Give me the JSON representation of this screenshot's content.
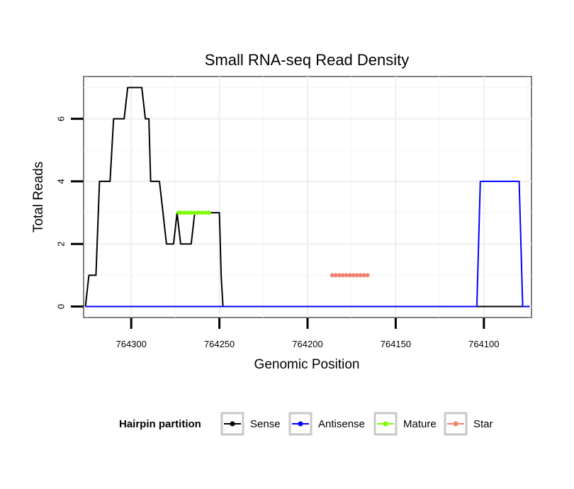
{
  "chart_data": {
    "type": "line",
    "title": "Small RNA-seq Read Density",
    "xlabel": "Genomic Position",
    "ylabel": "Total Reads",
    "x_reversed": true,
    "xlim": [
      764327,
      764073
    ],
    "ylim": [
      -0.35,
      7.35
    ],
    "xticks": [
      764300,
      764250,
      764200,
      764150,
      764100
    ],
    "xtick_labels": [
      "764300",
      "764250",
      "764200",
      "764150",
      "764100"
    ],
    "yticks": [
      0,
      2,
      4,
      6
    ],
    "ytick_labels": [
      "0",
      "2",
      "4",
      "6"
    ],
    "grid": true,
    "legend": {
      "title": "Hairpin partition",
      "position": "bottom",
      "entries": [
        {
          "label": "Sense",
          "color": "#000000"
        },
        {
          "label": "Antisense",
          "color": "#0000ff"
        },
        {
          "label": "Mature",
          "color": "#7cfc00"
        },
        {
          "label": "Star",
          "color": "#f08070"
        }
      ]
    },
    "series": [
      {
        "name": "Sense",
        "color": "#000000",
        "x": [
          764326,
          764324,
          764322,
          764320,
          764318,
          764316,
          764314,
          764312,
          764310,
          764308,
          764306,
          764304,
          764302,
          764300,
          764299,
          764298,
          764296,
          764294,
          764292,
          764290,
          764289,
          764288,
          764286,
          764284,
          764282,
          764280,
          764278,
          764276,
          764274,
          764272,
          764270,
          764268,
          764266,
          764264,
          764262,
          764260,
          764258,
          764256,
          764254,
          764252,
          764250,
          764249,
          764248,
          764246,
          764244,
          764242,
          764240,
          764238,
          764236,
          764234,
          764232,
          764230,
          764228,
          764226,
          764224,
          764222,
          764220,
          764218,
          764216,
          764214,
          764212,
          764210,
          764208,
          764206,
          764204,
          764202,
          764200,
          764198,
          764196,
          764194,
          764192,
          764190,
          764188,
          764186,
          764184,
          764182,
          764180,
          764178,
          764176,
          764174,
          764172,
          764170,
          764168,
          764166,
          764164,
          764162,
          764160,
          764158,
          764156,
          764154,
          764152,
          764150,
          764148,
          764146,
          764144,
          764142,
          764140,
          764138,
          764136,
          764134,
          764132,
          764130,
          764128,
          764126,
          764124,
          764122,
          764120,
          764118,
          764116,
          764114,
          764112,
          764110,
          764108,
          764106,
          764104,
          764102,
          764100,
          764098,
          764096,
          764094,
          764092,
          764090,
          764088,
          764086,
          764084,
          764082,
          764080,
          764078,
          764076,
          764074
        ],
        "y": [
          0,
          1,
          1,
          1,
          4,
          4,
          4,
          4,
          6,
          6,
          6,
          6,
          7,
          7,
          7,
          7,
          7,
          7,
          6,
          6,
          4,
          4,
          4,
          4,
          3,
          2,
          2,
          2,
          3,
          2,
          2,
          2,
          2,
          3,
          3,
          3,
          3,
          3,
          3,
          3,
          3,
          1,
          0,
          0,
          0,
          0,
          0,
          0,
          0,
          0,
          0,
          0,
          0,
          0,
          0,
          0,
          0,
          0,
          0,
          0,
          0,
          0,
          0,
          0,
          0,
          0,
          0,
          0,
          0,
          0,
          0,
          0,
          0,
          0,
          0,
          0,
          0,
          0,
          0,
          0,
          0,
          0,
          0,
          0,
          0,
          0,
          0,
          0,
          0,
          0,
          0,
          0,
          0,
          0,
          0,
          0,
          0,
          0,
          0,
          0,
          0,
          0,
          0,
          0,
          0,
          0,
          0,
          0,
          0,
          0,
          0,
          0,
          0,
          0,
          0,
          0,
          0,
          0,
          0,
          0,
          0,
          0,
          0,
          0,
          0,
          0,
          0,
          0,
          0,
          0
        ]
      },
      {
        "name": "Antisense",
        "color": "#0000ff",
        "x": [
          764326,
          764104,
          764102,
          764080,
          764078,
          764074
        ],
        "y": [
          0,
          0,
          4,
          4,
          0,
          0
        ]
      },
      {
        "name": "Mature",
        "color": "#7cfc00",
        "x": [
          764273,
          764272,
          764270,
          764268,
          764266,
          764264,
          764262,
          764260,
          764258,
          764256
        ],
        "y": [
          3,
          3,
          3,
          3,
          3,
          3,
          3,
          3,
          3,
          3
        ]
      },
      {
        "name": "Star",
        "color": "#f08070",
        "x": [
          764186,
          764184,
          764182,
          764180,
          764178,
          764176,
          764174,
          764172,
          764170,
          764168,
          764166
        ],
        "y": [
          1,
          1,
          1,
          1,
          1,
          1,
          1,
          1,
          1,
          1,
          1
        ]
      }
    ]
  }
}
